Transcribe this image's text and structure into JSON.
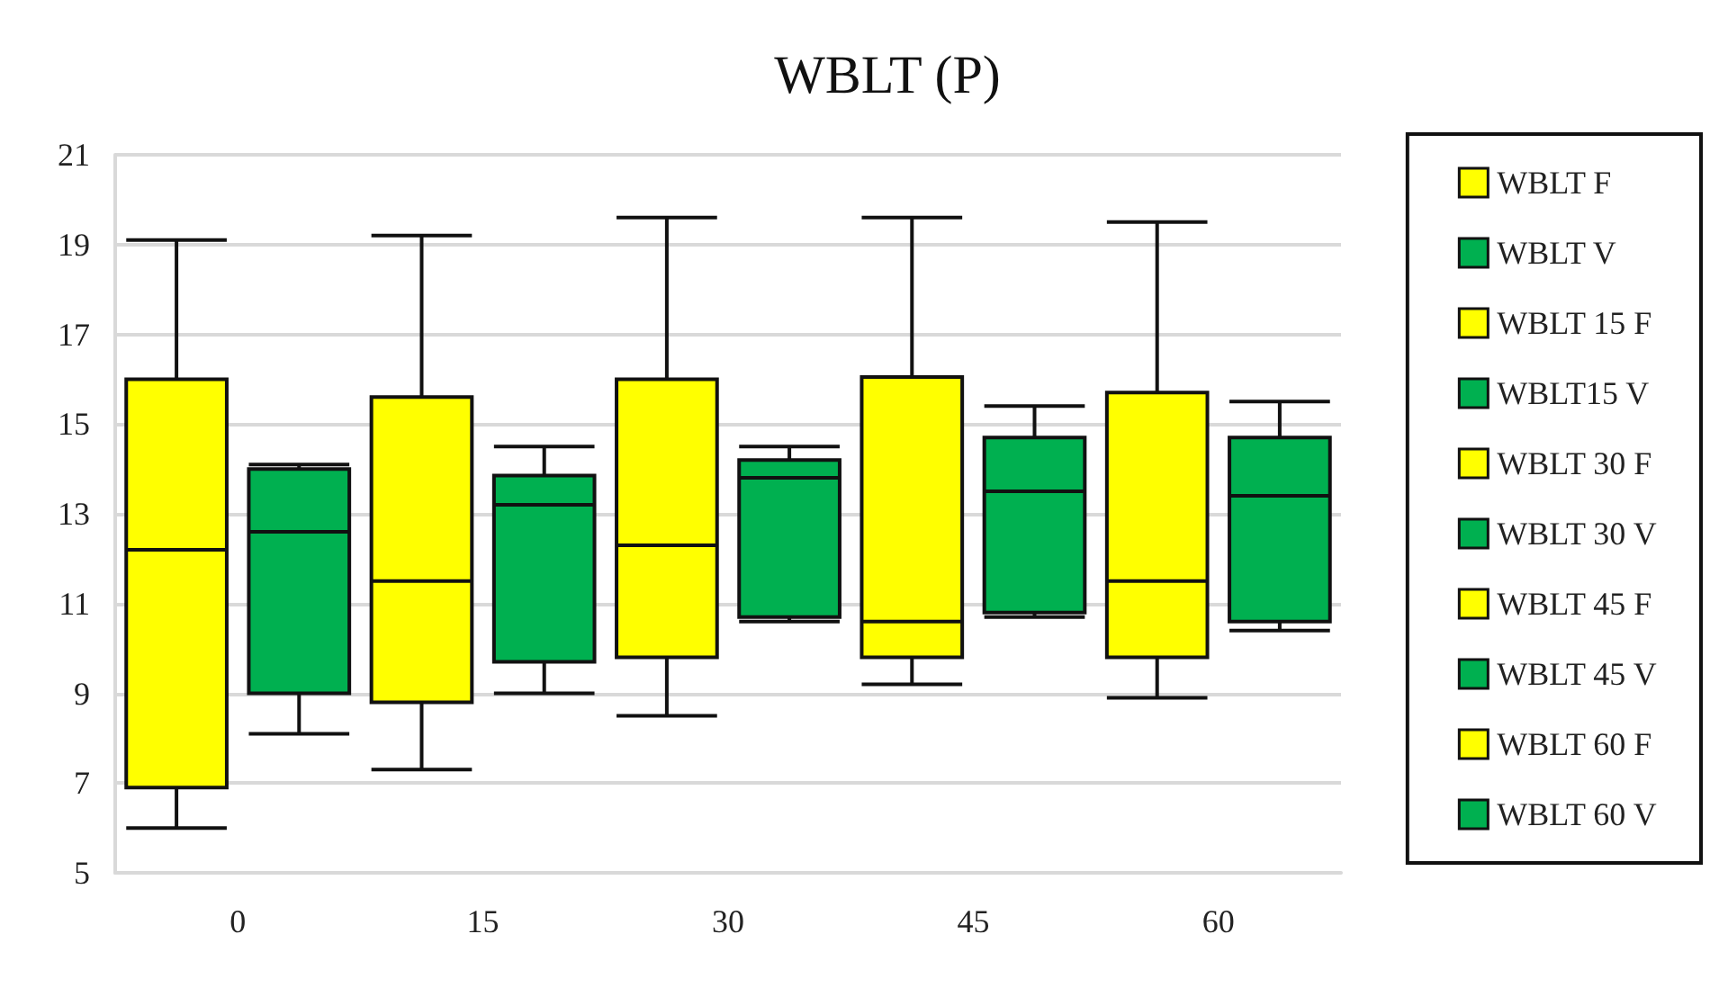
{
  "chart_data": {
    "type": "box",
    "title": "WBLT (P)",
    "categories": [
      "0",
      "15",
      "30",
      "45",
      "60"
    ],
    "ylim": [
      5,
      21
    ],
    "yticks": [
      5,
      7,
      9,
      11,
      13,
      15,
      17,
      19,
      21
    ],
    "grid": "y",
    "legend": "right",
    "series": [
      {
        "name": "WBLT F",
        "color": "#ffff00",
        "boxes": [
          {
            "low": 6.0,
            "q1": 6.9,
            "median": 12.2,
            "q3": 16.0,
            "high": 19.1
          },
          null,
          null,
          null,
          null
        ]
      },
      {
        "name": "WBLT V",
        "color": "#00b050",
        "boxes": [
          {
            "low": 8.1,
            "q1": 9.0,
            "median": 12.6,
            "q3": 14.0,
            "high": 14.1
          },
          null,
          null,
          null,
          null
        ]
      },
      {
        "name": "WBLT 15 F",
        "color": "#ffff00",
        "boxes": [
          null,
          {
            "low": 7.3,
            "q1": 8.8,
            "median": 11.5,
            "q3": 15.6,
            "high": 19.2
          },
          null,
          null,
          null
        ]
      },
      {
        "name": "WBLT15 V",
        "color": "#00b050",
        "boxes": [
          null,
          {
            "low": 9.0,
            "q1": 9.7,
            "median": 13.2,
            "q3": 13.85,
            "high": 14.5
          },
          null,
          null,
          null
        ]
      },
      {
        "name": "WBLT 30 F",
        "color": "#ffff00",
        "boxes": [
          null,
          null,
          {
            "low": 8.5,
            "q1": 9.8,
            "median": 12.3,
            "q3": 16.0,
            "high": 19.6
          },
          null,
          null
        ]
      },
      {
        "name": "WBLT 30 V",
        "color": "#00b050",
        "boxes": [
          null,
          null,
          {
            "low": 10.6,
            "q1": 10.7,
            "median": 13.8,
            "q3": 14.2,
            "high": 14.5
          },
          null,
          null
        ]
      },
      {
        "name": "WBLT 45 F",
        "color": "#ffff00",
        "boxes": [
          null,
          null,
          null,
          {
            "low": 9.2,
            "q1": 9.8,
            "median": 10.6,
            "q3": 16.05,
            "high": 19.6
          },
          null
        ]
      },
      {
        "name": "WBLT 45 V",
        "color": "#00b050",
        "boxes": [
          null,
          null,
          null,
          {
            "low": 10.7,
            "q1": 10.8,
            "median": 13.5,
            "q3": 14.7,
            "high": 15.4
          },
          null
        ]
      },
      {
        "name": "WBLT 60 F",
        "color": "#ffff00",
        "boxes": [
          null,
          null,
          null,
          null,
          {
            "low": 8.9,
            "q1": 9.8,
            "median": 11.5,
            "q3": 15.7,
            "high": 19.5
          }
        ]
      },
      {
        "name": "WBLT 60 V",
        "color": "#00b050",
        "boxes": [
          null,
          null,
          null,
          null,
          {
            "low": 10.4,
            "q1": 10.6,
            "median": 13.4,
            "q3": 14.7,
            "high": 15.5
          }
        ]
      }
    ]
  }
}
